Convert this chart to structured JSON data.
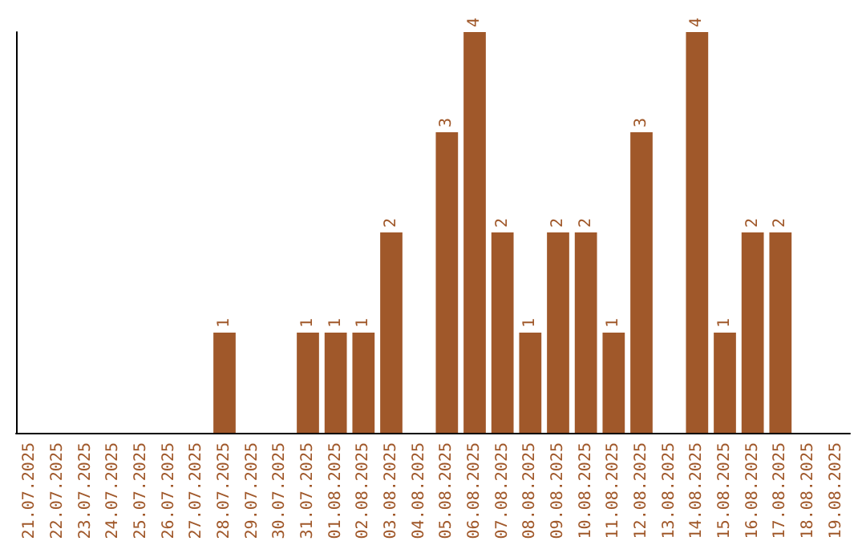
{
  "chart_data": {
    "type": "bar",
    "categories": [
      "21.07.2025",
      "22.07.2025",
      "23.07.2025",
      "24.07.2025",
      "25.07.2025",
      "26.07.2025",
      "27.07.2025",
      "28.07.2025",
      "29.07.2025",
      "30.07.2025",
      "31.07.2025",
      "01.08.2025",
      "02.08.2025",
      "03.08.2025",
      "04.08.2025",
      "05.08.2025",
      "06.08.2025",
      "07.08.2025",
      "08.08.2025",
      "09.08.2025",
      "10.08.2025",
      "11.08.2025",
      "12.08.2025",
      "13.08.2025",
      "14.08.2025",
      "15.08.2025",
      "16.08.2025",
      "17.08.2025",
      "18.08.2025",
      "19.08.2025"
    ],
    "values": [
      0,
      0,
      0,
      0,
      0,
      0,
      0,
      1,
      0,
      0,
      1,
      1,
      1,
      2,
      0,
      3,
      4,
      2,
      1,
      2,
      2,
      1,
      3,
      0,
      4,
      1,
      2,
      2,
      0,
      0
    ],
    "value_labels": [
      null,
      null,
      null,
      null,
      null,
      null,
      null,
      "1",
      null,
      null,
      "1",
      "1",
      "1",
      "2",
      null,
      "3",
      "4",
      "2",
      "1",
      "2",
      "2",
      "1",
      "3",
      null,
      "4",
      "1",
      "2",
      "2",
      null,
      null
    ],
    "color": "#a0582a",
    "ylim": [
      0,
      4
    ],
    "tick_labels": "x"
  }
}
